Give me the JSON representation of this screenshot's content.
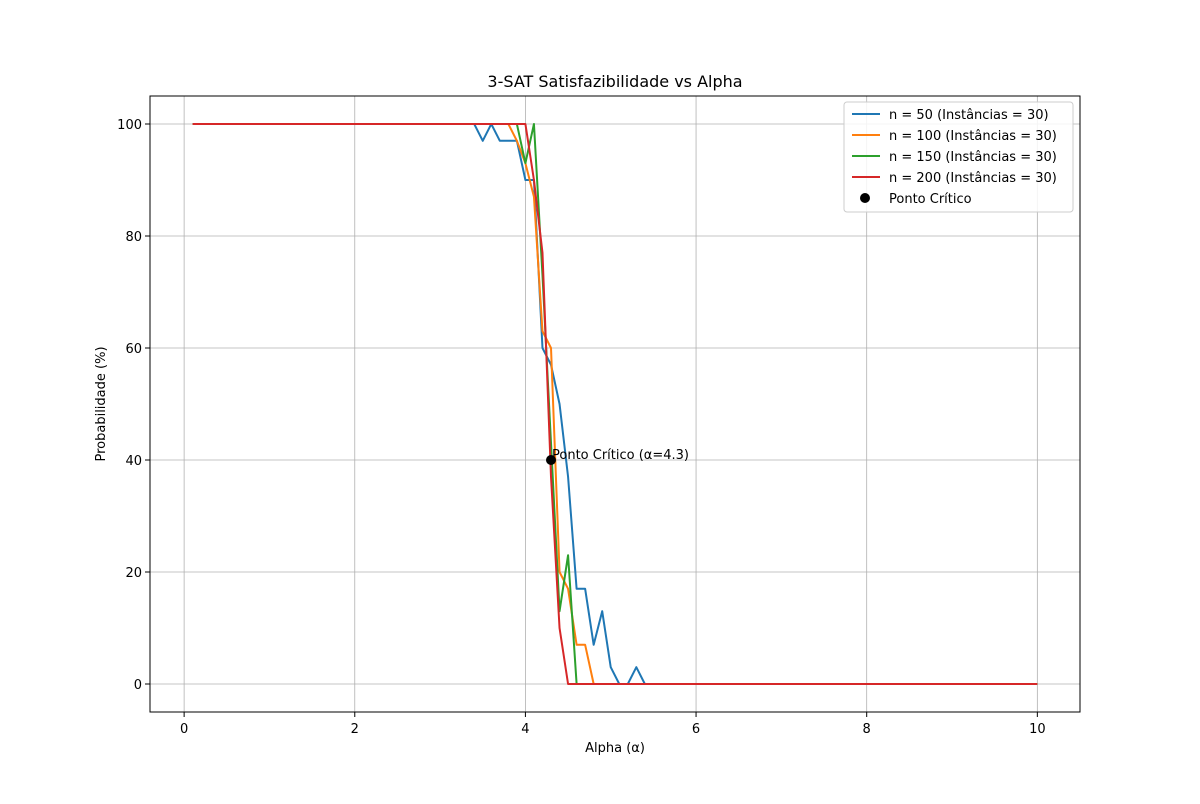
{
  "chart_data": {
    "type": "line",
    "title": "3-SAT Satisfazibilidade vs Alpha",
    "xlabel": "Alpha (α)",
    "ylabel": "Probabilidade (%)",
    "xlim": [
      -0.4,
      10.5
    ],
    "ylim": [
      -5,
      105
    ],
    "xticks": [
      0,
      2,
      4,
      6,
      8,
      10
    ],
    "yticks": [
      0,
      20,
      40,
      60,
      80,
      100
    ],
    "grid": true,
    "legend_position": "top-right",
    "colors": {
      "n50": "#1f77b4",
      "n100": "#ff7f0e",
      "n150": "#2ca02c",
      "n200": "#d62728",
      "critical": "#000000",
      "grid": "#b0b0b0"
    },
    "series": [
      {
        "name": "n = 50 (Instâncias = 30)",
        "color": "#1f77b4",
        "x": [
          0.1,
          3.4,
          3.5,
          3.6,
          3.7,
          3.8,
          3.9,
          4.0,
          4.1,
          4.2,
          4.3,
          4.4,
          4.5,
          4.6,
          4.7,
          4.8,
          4.9,
          5.0,
          5.1,
          5.2,
          5.3,
          5.4,
          10.0
        ],
        "y": [
          100,
          100,
          97,
          100,
          97,
          97,
          97,
          90,
          90,
          60,
          57,
          50,
          37,
          17,
          17,
          7,
          13,
          3,
          0,
          0,
          3,
          0,
          0
        ]
      },
      {
        "name": "n = 100 (Instâncias = 30)",
        "color": "#ff7f0e",
        "x": [
          0.1,
          3.8,
          3.9,
          4.0,
          4.1,
          4.2,
          4.3,
          4.4,
          4.5,
          4.6,
          4.7,
          4.8,
          10.0
        ],
        "y": [
          100,
          100,
          97,
          93,
          87,
          63,
          60,
          20,
          17,
          7,
          7,
          0,
          0
        ]
      },
      {
        "name": "n = 150 (Instâncias = 30)",
        "color": "#2ca02c",
        "x": [
          0.1,
          3.9,
          4.0,
          4.1,
          4.2,
          4.3,
          4.4,
          4.5,
          4.6,
          10.0
        ],
        "y": [
          100,
          100,
          93,
          100,
          73,
          43,
          13,
          23,
          0,
          0
        ]
      },
      {
        "name": "n = 200 (Instâncias = 30)",
        "color": "#d62728",
        "x": [
          0.1,
          4.0,
          4.1,
          4.2,
          4.3,
          4.4,
          4.5,
          10.0
        ],
        "y": [
          100,
          100,
          90,
          77,
          37,
          10,
          0,
          0
        ]
      }
    ],
    "critical_point": {
      "legend": "Ponto Crítico",
      "x": 4.3,
      "y": 40,
      "label": "Ponto Crítico (α=4.3)"
    }
  }
}
